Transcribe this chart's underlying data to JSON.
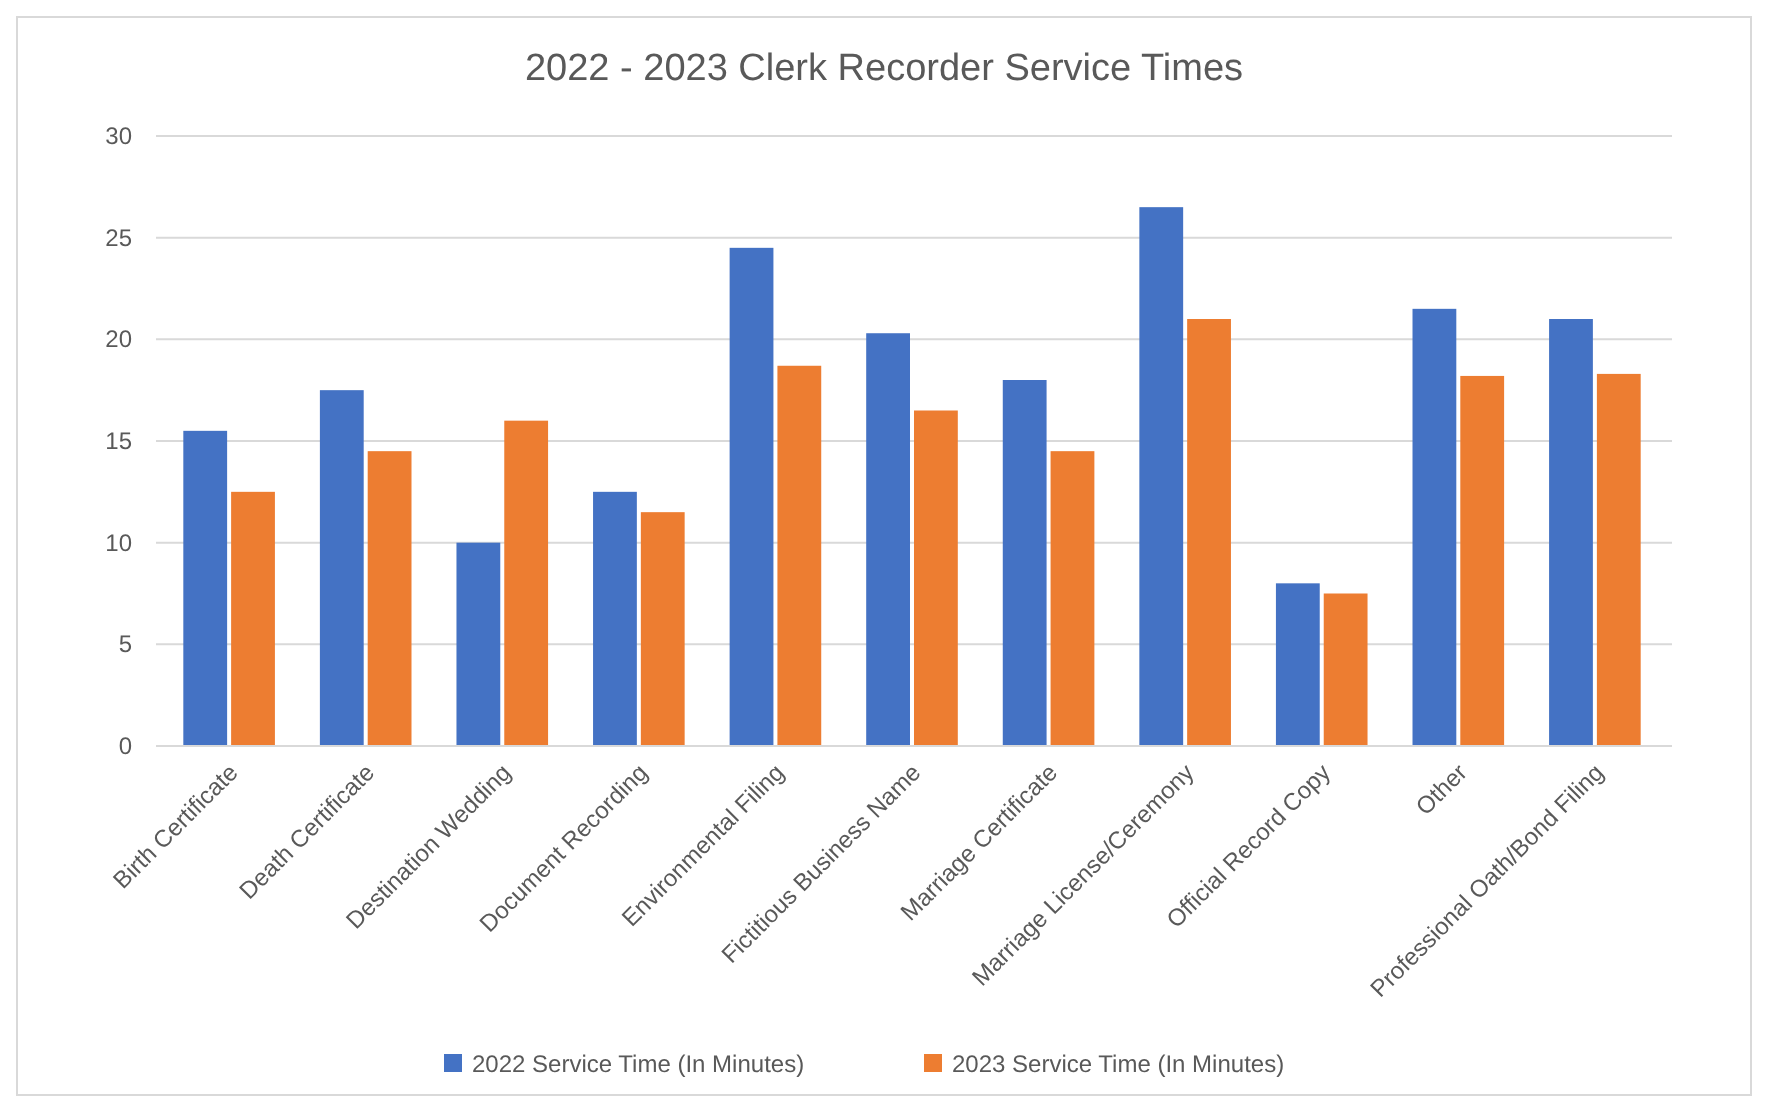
{
  "chart_data": {
    "type": "bar",
    "title": "2022 - 2023 Clerk Recorder Service Times",
    "categories": [
      "Birth Certificate",
      "Death Certificate",
      "Destination Wedding",
      "Document Recording",
      "Environmental Filing",
      "Fictitious Business Name",
      "Marriage Certificate",
      "Marriage License/Ceremony",
      "Official Record Copy",
      "Other",
      "Professional Oath/Bond Filing"
    ],
    "series": [
      {
        "name": "2022 Service Time (In Minutes)",
        "color": "#4472c4",
        "values": [
          15.5,
          17.5,
          10,
          12.5,
          24.5,
          20.3,
          18,
          26.5,
          8,
          21.5,
          21
        ]
      },
      {
        "name": "2023 Service Time (In Minutes)",
        "color": "#ed7d31",
        "values": [
          12.5,
          14.5,
          16,
          11.5,
          18.7,
          16.5,
          14.5,
          21,
          7.5,
          18.2,
          18.3
        ]
      }
    ],
    "ylim": [
      0,
      30
    ],
    "yticks": [
      0,
      5,
      10,
      15,
      20,
      25,
      30
    ],
    "grid": "y",
    "legend": "bottom"
  }
}
